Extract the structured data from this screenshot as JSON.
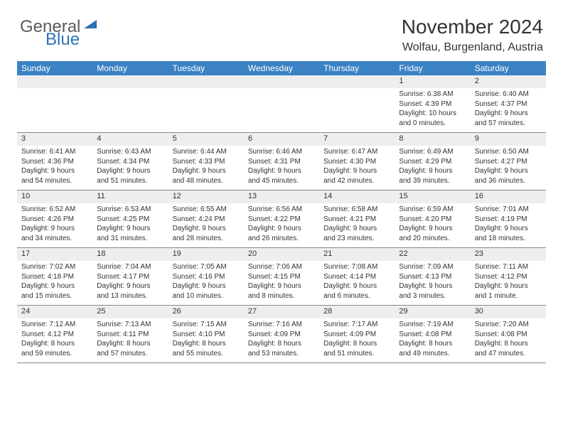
{
  "logo": {
    "part1": "General",
    "part2": "Blue"
  },
  "header": {
    "month_title": "November 2024",
    "location": "Wolfau, Burgenland, Austria"
  },
  "colors": {
    "header_bg": "#3a82c4",
    "daynum_bg": "#eceef0",
    "logo_blue": "#2d72b5",
    "text": "#333333"
  },
  "day_names": [
    "Sunday",
    "Monday",
    "Tuesday",
    "Wednesday",
    "Thursday",
    "Friday",
    "Saturday"
  ],
  "weeks": [
    [
      {
        "day": "",
        "sunrise": "",
        "sunset": "",
        "daylight": ""
      },
      {
        "day": "",
        "sunrise": "",
        "sunset": "",
        "daylight": ""
      },
      {
        "day": "",
        "sunrise": "",
        "sunset": "",
        "daylight": ""
      },
      {
        "day": "",
        "sunrise": "",
        "sunset": "",
        "daylight": ""
      },
      {
        "day": "",
        "sunrise": "",
        "sunset": "",
        "daylight": ""
      },
      {
        "day": "1",
        "sunrise": "Sunrise: 6:38 AM",
        "sunset": "Sunset: 4:39 PM",
        "daylight": "Daylight: 10 hours and 0 minutes."
      },
      {
        "day": "2",
        "sunrise": "Sunrise: 6:40 AM",
        "sunset": "Sunset: 4:37 PM",
        "daylight": "Daylight: 9 hours and 57 minutes."
      }
    ],
    [
      {
        "day": "3",
        "sunrise": "Sunrise: 6:41 AM",
        "sunset": "Sunset: 4:36 PM",
        "daylight": "Daylight: 9 hours and 54 minutes."
      },
      {
        "day": "4",
        "sunrise": "Sunrise: 6:43 AM",
        "sunset": "Sunset: 4:34 PM",
        "daylight": "Daylight: 9 hours and 51 minutes."
      },
      {
        "day": "5",
        "sunrise": "Sunrise: 6:44 AM",
        "sunset": "Sunset: 4:33 PM",
        "daylight": "Daylight: 9 hours and 48 minutes."
      },
      {
        "day": "6",
        "sunrise": "Sunrise: 6:46 AM",
        "sunset": "Sunset: 4:31 PM",
        "daylight": "Daylight: 9 hours and 45 minutes."
      },
      {
        "day": "7",
        "sunrise": "Sunrise: 6:47 AM",
        "sunset": "Sunset: 4:30 PM",
        "daylight": "Daylight: 9 hours and 42 minutes."
      },
      {
        "day": "8",
        "sunrise": "Sunrise: 6:49 AM",
        "sunset": "Sunset: 4:29 PM",
        "daylight": "Daylight: 9 hours and 39 minutes."
      },
      {
        "day": "9",
        "sunrise": "Sunrise: 6:50 AM",
        "sunset": "Sunset: 4:27 PM",
        "daylight": "Daylight: 9 hours and 36 minutes."
      }
    ],
    [
      {
        "day": "10",
        "sunrise": "Sunrise: 6:52 AM",
        "sunset": "Sunset: 4:26 PM",
        "daylight": "Daylight: 9 hours and 34 minutes."
      },
      {
        "day": "11",
        "sunrise": "Sunrise: 6:53 AM",
        "sunset": "Sunset: 4:25 PM",
        "daylight": "Daylight: 9 hours and 31 minutes."
      },
      {
        "day": "12",
        "sunrise": "Sunrise: 6:55 AM",
        "sunset": "Sunset: 4:24 PM",
        "daylight": "Daylight: 9 hours and 28 minutes."
      },
      {
        "day": "13",
        "sunrise": "Sunrise: 6:56 AM",
        "sunset": "Sunset: 4:22 PM",
        "daylight": "Daylight: 9 hours and 26 minutes."
      },
      {
        "day": "14",
        "sunrise": "Sunrise: 6:58 AM",
        "sunset": "Sunset: 4:21 PM",
        "daylight": "Daylight: 9 hours and 23 minutes."
      },
      {
        "day": "15",
        "sunrise": "Sunrise: 6:59 AM",
        "sunset": "Sunset: 4:20 PM",
        "daylight": "Daylight: 9 hours and 20 minutes."
      },
      {
        "day": "16",
        "sunrise": "Sunrise: 7:01 AM",
        "sunset": "Sunset: 4:19 PM",
        "daylight": "Daylight: 9 hours and 18 minutes."
      }
    ],
    [
      {
        "day": "17",
        "sunrise": "Sunrise: 7:02 AM",
        "sunset": "Sunset: 4:18 PM",
        "daylight": "Daylight: 9 hours and 15 minutes."
      },
      {
        "day": "18",
        "sunrise": "Sunrise: 7:04 AM",
        "sunset": "Sunset: 4:17 PM",
        "daylight": "Daylight: 9 hours and 13 minutes."
      },
      {
        "day": "19",
        "sunrise": "Sunrise: 7:05 AM",
        "sunset": "Sunset: 4:16 PM",
        "daylight": "Daylight: 9 hours and 10 minutes."
      },
      {
        "day": "20",
        "sunrise": "Sunrise: 7:06 AM",
        "sunset": "Sunset: 4:15 PM",
        "daylight": "Daylight: 9 hours and 8 minutes."
      },
      {
        "day": "21",
        "sunrise": "Sunrise: 7:08 AM",
        "sunset": "Sunset: 4:14 PM",
        "daylight": "Daylight: 9 hours and 6 minutes."
      },
      {
        "day": "22",
        "sunrise": "Sunrise: 7:09 AM",
        "sunset": "Sunset: 4:13 PM",
        "daylight": "Daylight: 9 hours and 3 minutes."
      },
      {
        "day": "23",
        "sunrise": "Sunrise: 7:11 AM",
        "sunset": "Sunset: 4:12 PM",
        "daylight": "Daylight: 9 hours and 1 minute."
      }
    ],
    [
      {
        "day": "24",
        "sunrise": "Sunrise: 7:12 AM",
        "sunset": "Sunset: 4:12 PM",
        "daylight": "Daylight: 8 hours and 59 minutes."
      },
      {
        "day": "25",
        "sunrise": "Sunrise: 7:13 AM",
        "sunset": "Sunset: 4:11 PM",
        "daylight": "Daylight: 8 hours and 57 minutes."
      },
      {
        "day": "26",
        "sunrise": "Sunrise: 7:15 AM",
        "sunset": "Sunset: 4:10 PM",
        "daylight": "Daylight: 8 hours and 55 minutes."
      },
      {
        "day": "27",
        "sunrise": "Sunrise: 7:16 AM",
        "sunset": "Sunset: 4:09 PM",
        "daylight": "Daylight: 8 hours and 53 minutes."
      },
      {
        "day": "28",
        "sunrise": "Sunrise: 7:17 AM",
        "sunset": "Sunset: 4:09 PM",
        "daylight": "Daylight: 8 hours and 51 minutes."
      },
      {
        "day": "29",
        "sunrise": "Sunrise: 7:19 AM",
        "sunset": "Sunset: 4:08 PM",
        "daylight": "Daylight: 8 hours and 49 minutes."
      },
      {
        "day": "30",
        "sunrise": "Sunrise: 7:20 AM",
        "sunset": "Sunset: 4:08 PM",
        "daylight": "Daylight: 8 hours and 47 minutes."
      }
    ]
  ]
}
